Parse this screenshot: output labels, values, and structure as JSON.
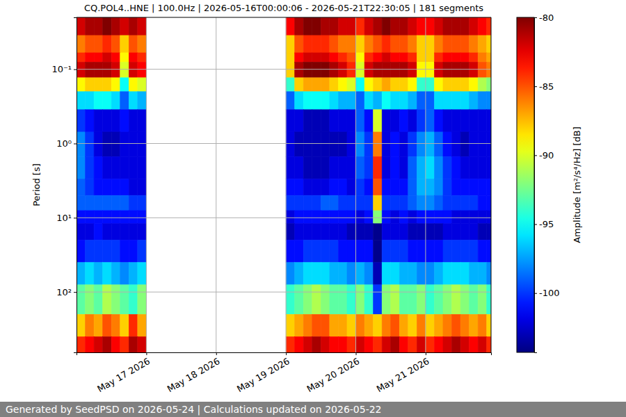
{
  "chart_data": {
    "type": "heatmap",
    "title": "CQ.POL4..HNE | 100.0Hz | 2026-05-16T00:00:06 - 2026-05-21T22:30:05 | 181 segments",
    "y_label": "Period [s]",
    "footer": "Generated by SeedPSD on 2026-05-24 | Calculations updated on 2026-05-22",
    "log": "y",
    "grid": true,
    "xlim": [
      "2026-05-16T00:00",
      "2026-05-21T22:30"
    ],
    "xticks": [
      {
        "value": "2026-05-17T00:00",
        "label": "May 17 2026"
      },
      {
        "value": "2026-05-18T00:00",
        "label": "May 18 2026"
      },
      {
        "value": "2026-05-19T00:00",
        "label": "May 19 2026"
      },
      {
        "value": "2026-05-20T00:00",
        "label": "May 20 2026"
      },
      {
        "value": "2026-05-21T00:00",
        "label": "May 21 2026"
      }
    ],
    "ylim": [
      0.02,
      650
    ],
    "yticks": [
      {
        "value": 0.1,
        "label": "10⁻¹"
      },
      {
        "value": 1,
        "label": "10⁰"
      },
      {
        "value": 10,
        "label": "10¹"
      },
      {
        "value": 100,
        "label": "10²"
      }
    ],
    "x": [
      "2026-05-16T00:00",
      "2026-05-16T03:00",
      "2026-05-16T06:00",
      "2026-05-16T09:00",
      "2026-05-16T12:00",
      "2026-05-16T15:00",
      "2026-05-16T18:00",
      "2026-05-16T21:00",
      "2026-05-17T00:00",
      "2026-05-17T03:00",
      "2026-05-17T06:00",
      "2026-05-17T09:00",
      "2026-05-17T12:00",
      "2026-05-17T15:00",
      "2026-05-17T18:00",
      "2026-05-17T21:00",
      "2026-05-18T00:00",
      "2026-05-18T03:00",
      "2026-05-18T06:00",
      "2026-05-18T09:00",
      "2026-05-18T12:00",
      "2026-05-18T15:00",
      "2026-05-18T18:00",
      "2026-05-18T21:00",
      "2026-05-19T00:00",
      "2026-05-19T03:00",
      "2026-05-19T06:00",
      "2026-05-19T09:00",
      "2026-05-19T12:00",
      "2026-05-19T15:00",
      "2026-05-19T18:00",
      "2026-05-19T21:00",
      "2026-05-20T00:00",
      "2026-05-20T03:00",
      "2026-05-20T06:00",
      "2026-05-20T09:00",
      "2026-05-20T12:00",
      "2026-05-20T15:00",
      "2026-05-20T18:00",
      "2026-05-20T21:00",
      "2026-05-21T00:00",
      "2026-05-21T03:00",
      "2026-05-21T06:00",
      "2026-05-21T09:00",
      "2026-05-21T12:00",
      "2026-05-21T15:00",
      "2026-05-21T18:00",
      "2026-05-21T21:00",
      "2026-05-22T00:00"
    ],
    "y": [
      0.02,
      0.035,
      0.06,
      0.08,
      0.13,
      0.2,
      0.35,
      0.7,
      1.5,
      3,
      5,
      8,
      12,
      20,
      40,
      80,
      200,
      400,
      650
    ],
    "values": [
      [
        -82,
        -81,
        -81,
        -80,
        -81,
        -82,
        -81,
        -82,
        null,
        null,
        null,
        null,
        null,
        null,
        null,
        null,
        null,
        null,
        null,
        null,
        null,
        null,
        null,
        null,
        -83,
        -81,
        -80,
        -80,
        -81,
        -81,
        -82,
        -82,
        -84,
        -82,
        -81,
        -80,
        -81,
        -81,
        -82,
        -83,
        -83,
        -82,
        -81,
        -81,
        -81,
        -82,
        -83,
        -84
      ],
      [
        -86,
        -85,
        -85,
        -84,
        -85,
        -88,
        -85,
        -86,
        null,
        null,
        null,
        null,
        null,
        null,
        null,
        null,
        null,
        null,
        null,
        null,
        null,
        null,
        null,
        null,
        -88,
        -85,
        -84,
        -84,
        -84,
        -85,
        -86,
        -86,
        -88,
        -86,
        -85,
        -84,
        -85,
        -85,
        -86,
        -88,
        -88,
        -86,
        -85,
        -85,
        -85,
        -86,
        -87,
        -88
      ],
      [
        -84,
        -83,
        -83,
        -82,
        -83,
        -89,
        -83,
        -84,
        null,
        null,
        null,
        null,
        null,
        null,
        null,
        null,
        null,
        null,
        null,
        null,
        null,
        null,
        null,
        null,
        -88,
        -83,
        -82,
        -82,
        -82,
        -83,
        -84,
        -85,
        -89,
        -84,
        -83,
        -82,
        -83,
        -83,
        -84,
        -88,
        -88,
        -84,
        -83,
        -83,
        -83,
        -84,
        -86,
        -87
      ],
      [
        -82,
        -81,
        -81,
        -81,
        -82,
        -90,
        -82,
        -83,
        null,
        null,
        null,
        null,
        null,
        null,
        null,
        null,
        null,
        null,
        null,
        null,
        null,
        null,
        null,
        null,
        -88,
        -81,
        -80,
        -80,
        -80,
        -81,
        -82,
        -84,
        -90,
        -82,
        -81,
        -81,
        -81,
        -81,
        -82,
        -89,
        -89,
        -82,
        -81,
        -81,
        -81,
        -82,
        -85,
        -86
      ],
      [
        -89,
        -88,
        -88,
        -88,
        -89,
        -95,
        -89,
        -90,
        null,
        null,
        null,
        null,
        null,
        null,
        null,
        null,
        null,
        null,
        null,
        null,
        null,
        null,
        null,
        null,
        -94,
        -88,
        -87,
        -87,
        -87,
        -88,
        -89,
        -90,
        -95,
        -89,
        -88,
        -87,
        -88,
        -88,
        -89,
        -94,
        -94,
        -89,
        -88,
        -88,
        -88,
        -89,
        -91,
        -92
      ],
      [
        -96,
        -96,
        -95,
        -95,
        -96,
        -99,
        -96,
        -97,
        null,
        null,
        null,
        null,
        null,
        null,
        null,
        null,
        null,
        null,
        null,
        null,
        null,
        null,
        null,
        null,
        -99,
        -96,
        -95,
        -95,
        -95,
        -96,
        -97,
        -97,
        -99,
        -96,
        -97,
        -95,
        -96,
        -96,
        -97,
        -99,
        -99,
        -96,
        -96,
        -96,
        -96,
        -97,
        -98,
        -98
      ],
      [
        -100,
        -101,
        -102,
        -102,
        -102,
        -101,
        -102,
        -102,
        null,
        null,
        null,
        null,
        null,
        null,
        null,
        null,
        null,
        null,
        null,
        null,
        null,
        null,
        null,
        null,
        -102,
        -102,
        -103,
        -103,
        -103,
        -102,
        -102,
        -102,
        -99,
        -101,
        -90,
        -102,
        -102,
        -101,
        -102,
        -100,
        -99,
        -101,
        -102,
        -102,
        -102,
        -102,
        -102,
        -102
      ],
      [
        -98,
        -100,
        -102,
        -103,
        -103,
        -102,
        -102,
        -102,
        null,
        null,
        null,
        null,
        null,
        null,
        null,
        null,
        null,
        null,
        null,
        null,
        null,
        null,
        null,
        null,
        -102,
        -103,
        -103,
        -103,
        -103,
        -103,
        -103,
        -102,
        -98,
        -100,
        -86,
        -102,
        -101,
        -102,
        -100,
        -98,
        -97,
        -99,
        -101,
        -102,
        -103,
        -102,
        -102,
        -102
      ],
      [
        -98,
        -100,
        -101,
        -102,
        -102,
        -102,
        -102,
        -102,
        null,
        null,
        null,
        null,
        null,
        null,
        null,
        null,
        null,
        null,
        null,
        null,
        null,
        null,
        null,
        null,
        -102,
        -102,
        -103,
        -103,
        -103,
        -102,
        -102,
        -102,
        -99,
        -100,
        -84,
        -102,
        -101,
        -102,
        -99,
        -97,
        -96,
        -98,
        -100,
        -101,
        -102,
        -102,
        -102,
        -102
      ],
      [
        -99,
        -100,
        -101,
        -101,
        -101,
        -101,
        -102,
        -102,
        null,
        null,
        null,
        null,
        null,
        null,
        null,
        null,
        null,
        null,
        null,
        null,
        null,
        null,
        null,
        null,
        -101,
        -101,
        -102,
        -102,
        -102,
        -101,
        -101,
        -102,
        -100,
        -101,
        -85,
        -101,
        -101,
        -101,
        -99,
        -97,
        -97,
        -98,
        -100,
        -101,
        -101,
        -101,
        -101,
        -101
      ],
      [
        -99,
        -99,
        -99,
        -99,
        -99,
        -99,
        -100,
        -100,
        null,
        null,
        null,
        null,
        null,
        null,
        null,
        null,
        null,
        null,
        null,
        null,
        null,
        null,
        null,
        null,
        -100,
        -100,
        -100,
        -100,
        -99,
        -99,
        -100,
        -100,
        -100,
        -100,
        -88,
        -100,
        -100,
        -100,
        -99,
        -98,
        -98,
        -99,
        -100,
        -100,
        -100,
        -100,
        -101,
        -101
      ],
      [
        -101,
        -101,
        -101,
        -101,
        -101,
        -101,
        -101,
        -101,
        null,
        null,
        null,
        null,
        null,
        null,
        null,
        null,
        null,
        null,
        null,
        null,
        null,
        null,
        null,
        null,
        -102,
        -101,
        -101,
        -101,
        -101,
        -101,
        -101,
        -101,
        -102,
        -101,
        -92,
        -101,
        -102,
        -101,
        -102,
        -101,
        -101,
        -101,
        -101,
        -102,
        -102,
        -102,
        -102,
        -102
      ],
      [
        -102,
        -102,
        -101,
        -102,
        -102,
        -102,
        -102,
        -102,
        null,
        null,
        null,
        null,
        null,
        null,
        null,
        null,
        null,
        null,
        null,
        null,
        null,
        null,
        null,
        null,
        -103,
        -102,
        -102,
        -102,
        -102,
        -102,
        -102,
        -103,
        -103,
        -103,
        -104,
        -102,
        -102,
        -102,
        -103,
        -103,
        -103,
        -103,
        -102,
        -102,
        -102,
        -102,
        -103,
        -103
      ],
      [
        -101,
        -100,
        -100,
        -100,
        -100,
        -101,
        -101,
        -100,
        null,
        null,
        null,
        null,
        null,
        null,
        null,
        null,
        null,
        null,
        null,
        null,
        null,
        null,
        null,
        null,
        -101,
        -101,
        -100,
        -100,
        -100,
        -100,
        -101,
        -101,
        -101,
        -101,
        -104,
        -100,
        -100,
        -100,
        -101,
        -101,
        -101,
        -101,
        -100,
        -100,
        -100,
        -100,
        -101,
        -101
      ],
      [
        -97,
        -96,
        -97,
        -96,
        -97,
        -98,
        -97,
        -96,
        null,
        null,
        null,
        null,
        null,
        null,
        null,
        null,
        null,
        null,
        null,
        null,
        null,
        null,
        null,
        null,
        -98,
        -97,
        -96,
        -96,
        -96,
        -97,
        -97,
        -98,
        -97,
        -98,
        -103,
        -96,
        -96,
        -97,
        -97,
        -98,
        -98,
        -97,
        -96,
        -96,
        -96,
        -97,
        -97,
        -98
      ],
      [
        -93,
        -92,
        -93,
        -91,
        -92,
        -93,
        -94,
        -92,
        null,
        null,
        null,
        null,
        null,
        null,
        null,
        null,
        null,
        null,
        null,
        null,
        null,
        null,
        null,
        null,
        -94,
        -93,
        -92,
        -91,
        -92,
        -93,
        -93,
        -94,
        -92,
        -94,
        -100,
        -92,
        -91,
        -93,
        -93,
        -92,
        -94,
        -93,
        -92,
        -91,
        -92,
        -93,
        -92,
        -94
      ],
      [
        -88,
        -86,
        -87,
        -85,
        -86,
        -88,
        -84,
        -87,
        null,
        null,
        null,
        null,
        null,
        null,
        null,
        null,
        null,
        null,
        null,
        null,
        null,
        null,
        null,
        null,
        -88,
        -87,
        -86,
        -85,
        -85,
        -87,
        -87,
        -88,
        -86,
        -87,
        -88,
        -86,
        -85,
        -87,
        -88,
        -86,
        -88,
        -87,
        -86,
        -85,
        -86,
        -87,
        -86,
        -88
      ],
      [
        -84,
        -83,
        -82,
        -81,
        -83,
        -84,
        -81,
        -82,
        null,
        null,
        null,
        null,
        null,
        null,
        null,
        null,
        null,
        null,
        null,
        null,
        null,
        null,
        null,
        null,
        -84,
        -83,
        -82,
        -81,
        -82,
        -83,
        -83,
        -84,
        -82,
        -83,
        -84,
        -82,
        -81,
        -83,
        -84,
        -82,
        -84,
        -83,
        -82,
        -81,
        -82,
        -83,
        -82,
        -84
      ]
    ],
    "colorbar": {
      "label": "Amplitude [m²/s⁴/Hz] [dB]",
      "range": [
        -104.3,
        -80
      ],
      "ticks": [
        -80,
        -85,
        -90,
        -95,
        -100
      ]
    }
  }
}
